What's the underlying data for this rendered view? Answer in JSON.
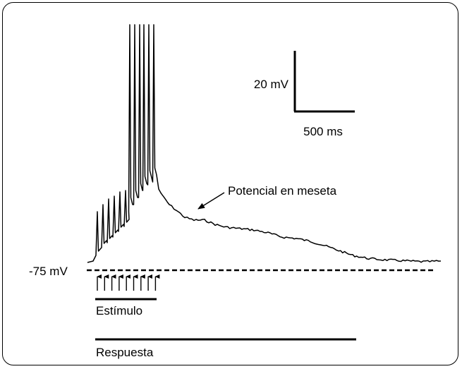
{
  "scale_bar": {
    "voltage_label": "20 mV",
    "time_label": "500 ms"
  },
  "baseline_label": "-75 mV",
  "annotation": "Potencial en meseta",
  "stimulus_label": "Estímulo",
  "response_label": "Respuesta",
  "stimulus_arrow_count": 9,
  "colors": {
    "trace": "#000000",
    "background": "#ffffff"
  }
}
